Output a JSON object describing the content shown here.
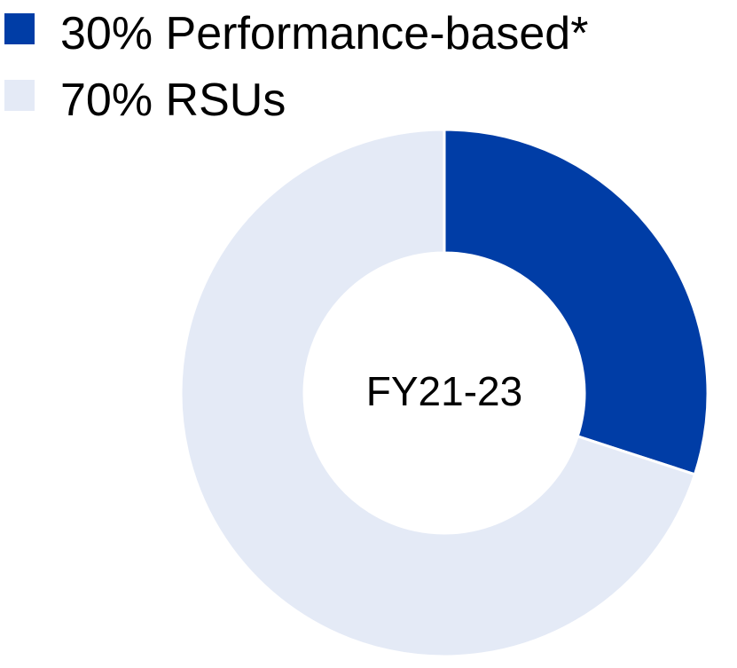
{
  "chart_data": {
    "type": "donut",
    "categories": [
      "Performance-based*",
      "RSUs"
    ],
    "values": [
      30,
      70
    ],
    "value_labels": [
      "30%",
      "70%"
    ],
    "colors": [
      "#003da6",
      "#e4eaf6"
    ],
    "center_label": "FY21-23",
    "legend": "top-left"
  }
}
